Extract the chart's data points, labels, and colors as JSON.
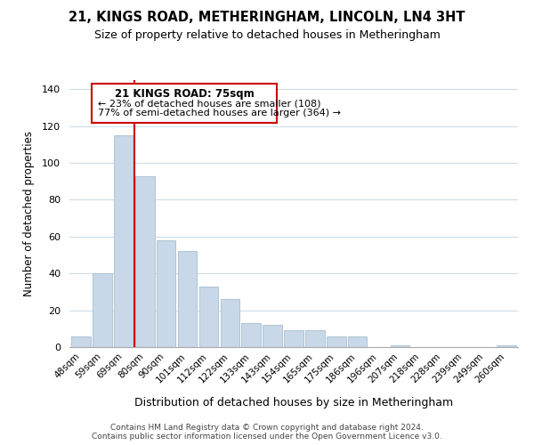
{
  "title": "21, KINGS ROAD, METHERINGHAM, LINCOLN, LN4 3HT",
  "subtitle": "Size of property relative to detached houses in Metheringham",
  "xlabel": "Distribution of detached houses by size in Metheringham",
  "ylabel": "Number of detached properties",
  "bar_labels": [
    "48sqm",
    "59sqm",
    "69sqm",
    "80sqm",
    "90sqm",
    "101sqm",
    "112sqm",
    "122sqm",
    "133sqm",
    "143sqm",
    "154sqm",
    "165sqm",
    "175sqm",
    "186sqm",
    "196sqm",
    "207sqm",
    "218sqm",
    "228sqm",
    "239sqm",
    "249sqm",
    "260sqm"
  ],
  "bar_values": [
    6,
    40,
    115,
    93,
    58,
    52,
    33,
    26,
    13,
    12,
    9,
    9,
    6,
    6,
    0,
    1,
    0,
    0,
    0,
    0,
    1
  ],
  "bar_color": "#c8d8e8",
  "bar_edge_color": "#b0c4d4",
  "highlight_bar_index": 2,
  "highlight_edge_color": "#cc0000",
  "red_line_bar_index": 2,
  "ylim": [
    0,
    145
  ],
  "yticks": [
    0,
    20,
    40,
    60,
    80,
    100,
    120,
    140
  ],
  "annotation_title": "21 KINGS ROAD: 75sqm",
  "annotation_line1": "← 23% of detached houses are smaller (108)",
  "annotation_line2": "77% of semi-detached houses are larger (364) →",
  "annotation_box_color": "#ffffff",
  "annotation_box_edge": "#cc0000",
  "footer_line1": "Contains HM Land Registry data © Crown copyright and database right 2024.",
  "footer_line2": "Contains public sector information licensed under the Open Government Licence v3.0.",
  "background_color": "#ffffff",
  "grid_color": "#ccdde8"
}
